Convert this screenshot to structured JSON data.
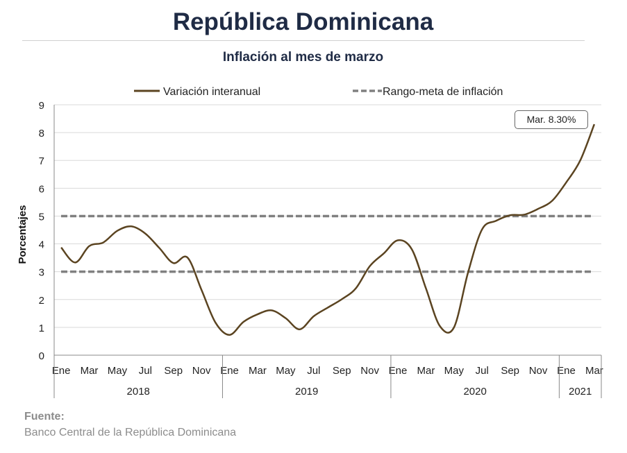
{
  "title": "República Dominicana",
  "subtitle": "Inflación al mes de marzo",
  "source": {
    "label": "Fuente:",
    "text": "Banco Central de la República Dominicana"
  },
  "colors": {
    "series": "#5b4421",
    "target": "#808080",
    "grid": "#d9d9d9",
    "title": "#1f2b45"
  },
  "chart_data": {
    "type": "line",
    "ylabel": "Porcentajes",
    "ylim": [
      0,
      9
    ],
    "yticks": [
      "0",
      "1",
      "2",
      "3",
      "4",
      "5",
      "6",
      "7",
      "8",
      "9"
    ],
    "grid": true,
    "legend_position": "top",
    "x": [
      "2018-01",
      "2018-02",
      "2018-03",
      "2018-04",
      "2018-05",
      "2018-06",
      "2018-07",
      "2018-08",
      "2018-09",
      "2018-10",
      "2018-11",
      "2018-12",
      "2019-01",
      "2019-02",
      "2019-03",
      "2019-04",
      "2019-05",
      "2019-06",
      "2019-07",
      "2019-08",
      "2019-09",
      "2019-10",
      "2019-11",
      "2019-12",
      "2020-01",
      "2020-02",
      "2020-03",
      "2020-04",
      "2020-05",
      "2020-06",
      "2020-07",
      "2020-08",
      "2020-09",
      "2020-10",
      "2020-11",
      "2020-12",
      "2021-01",
      "2021-02",
      "2021-03"
    ],
    "month_labels": [
      "Ene",
      "",
      "Mar",
      "",
      "May",
      "",
      "Jul",
      "",
      "Sep",
      "",
      "Nov",
      "",
      "Ene",
      "",
      "Mar",
      "",
      "May",
      "",
      "Jul",
      "",
      "Sep",
      "",
      "Nov",
      "",
      "Ene",
      "",
      "Mar",
      "",
      "May",
      "",
      "Jul",
      "",
      "Sep",
      "",
      "Nov",
      "",
      "Ene",
      "",
      "Mar"
    ],
    "years": [
      {
        "label": "2018",
        "start": 0,
        "end": 11
      },
      {
        "label": "2019",
        "start": 12,
        "end": 23
      },
      {
        "label": "2020",
        "start": 24,
        "end": 35
      },
      {
        "label": "2021",
        "start": 36,
        "end": 38
      }
    ],
    "series": [
      {
        "name": "Variación interanual",
        "style": "solid",
        "values": [
          3.87,
          3.33,
          3.92,
          4.05,
          4.47,
          4.63,
          4.37,
          3.85,
          3.31,
          3.51,
          2.35,
          1.17,
          0.73,
          1.2,
          1.47,
          1.61,
          1.33,
          0.93,
          1.4,
          1.71,
          2.01,
          2.4,
          3.2,
          3.66,
          4.13,
          3.8,
          2.4,
          1.04,
          1.0,
          2.97,
          4.52,
          4.83,
          5.03,
          5.05,
          5.26,
          5.55,
          6.21,
          7.0,
          8.3
        ]
      }
    ],
    "reference_lines": [
      {
        "name": "Rango-meta de inflación",
        "style": "dashed",
        "values": [
          5,
          3
        ]
      }
    ],
    "annotation": "Mar. 8.30%"
  }
}
